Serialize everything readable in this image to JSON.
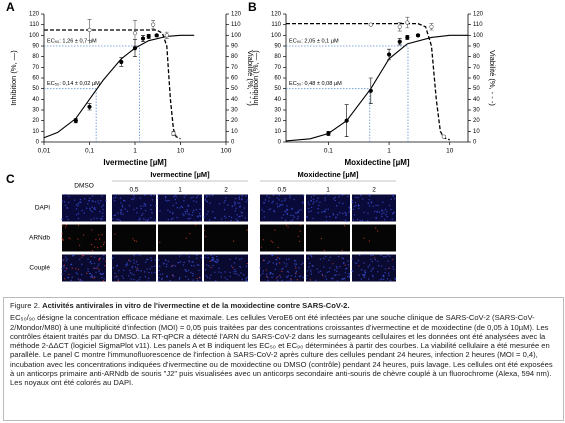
{
  "chart_data": [
    {
      "type": "dose-response",
      "panel": "A",
      "xlabel": "Ivermectine [µM]",
      "ylabel": "Inhibition (%, —)",
      "y2label": "Viabilité (%, - - -)",
      "log_x": true,
      "xlim": [
        0.01,
        100
      ],
      "xticks": [
        {
          "value": 0.01,
          "label": "0,01"
        },
        {
          "value": 0.1,
          "label": "0,1"
        },
        1,
        10,
        100
      ],
      "ylim": [
        0,
        120
      ],
      "yticks": [
        0,
        10,
        20,
        30,
        40,
        50,
        60,
        70,
        80,
        90,
        100,
        110,
        120
      ],
      "y2lim": [
        0,
        120
      ],
      "y2ticks": [
        0,
        10,
        20,
        30,
        40,
        50,
        60,
        70,
        80,
        90,
        100,
        110,
        120
      ],
      "series": [
        {
          "style": "fit",
          "color": "#000000",
          "x": [
            0.01,
            0.02,
            0.05,
            0.1,
            0.2,
            0.5,
            1,
            2,
            5,
            10,
            20
          ],
          "values": [
            4,
            9,
            22,
            40,
            58,
            78,
            88,
            95,
            99,
            100,
            100
          ]
        },
        {
          "style": "fit-dashed",
          "axis": "y2",
          "color": "#000000",
          "x": [
            0.01,
            0.1,
            1,
            3,
            4,
            5,
            6,
            7,
            8,
            10
          ],
          "values": [
            105,
            105,
            105,
            105,
            102,
            90,
            40,
            12,
            5,
            3
          ]
        },
        {
          "style": "points-filled",
          "color": "#000000",
          "x": [
            0.05,
            0.1,
            0.5,
            1,
            1.5,
            2,
            3
          ],
          "values": [
            20,
            33,
            75,
            88,
            97,
            99,
            100
          ],
          "errors": [
            2,
            3,
            4,
            8,
            3,
            2,
            1
          ]
        },
        {
          "style": "points-open",
          "axis": "y2",
          "color": "#555555",
          "x": [
            0.1,
            1,
            2.5,
            5,
            7
          ],
          "values": [
            105,
            102,
            110,
            100,
            8
          ],
          "errors": [
            10,
            12,
            4,
            3,
            2
          ]
        }
      ],
      "ec_markers": [
        {
          "x": 1.26,
          "y": 90,
          "label": "EC₉₀: 1,26 ± 0,7 µM"
        },
        {
          "x": 0.14,
          "y": 50,
          "label": "EC₅₀: 0,14 ± 0,02 µM"
        }
      ],
      "ec_color": "#5b8fd0"
    },
    {
      "type": "dose-response",
      "panel": "B",
      "xlabel": "Moxidectine [µM]",
      "ylabel": "Inhibition (%, —)",
      "y2label": "Viabilité (%, - - -)",
      "log_x": true,
      "xlim": [
        0.02,
        20
      ],
      "xticks": [
        0.1,
        1,
        10
      ],
      "ylim": [
        0,
        120
      ],
      "yticks": [
        0,
        10,
        20,
        30,
        40,
        50,
        60,
        70,
        80,
        90,
        100,
        110,
        120
      ],
      "y2lim": [
        0,
        120
      ],
      "y2ticks": [
        0,
        10,
        20,
        30,
        40,
        50,
        60,
        70,
        80,
        90,
        100,
        110,
        120
      ],
      "series": [
        {
          "style": "fit",
          "color": "#000000",
          "x": [
            0.02,
            0.05,
            0.1,
            0.2,
            0.5,
            1,
            2,
            5,
            10,
            20
          ],
          "values": [
            1,
            3,
            8,
            20,
            50,
            78,
            92,
            98,
            100,
            100
          ]
        },
        {
          "style": "fit-dashed",
          "axis": "y2",
          "color": "#000000",
          "x": [
            0.02,
            0.5,
            1,
            3,
            4,
            5,
            6,
            7,
            8,
            10
          ],
          "values": [
            111,
            111,
            111,
            111,
            108,
            90,
            40,
            10,
            4,
            2
          ]
        },
        {
          "style": "points-filled",
          "color": "#000000",
          "x": [
            0.1,
            0.2,
            0.5,
            1,
            1.5,
            2,
            3
          ],
          "values": [
            8,
            20,
            48,
            82,
            94,
            98,
            100
          ],
          "errors": [
            2,
            15,
            12,
            5,
            3,
            2,
            1
          ]
        },
        {
          "style": "points-open",
          "axis": "y2",
          "color": "#555555",
          "x": [
            0.5,
            1.5,
            2,
            5,
            8
          ],
          "values": [
            110,
            108,
            112,
            108,
            5
          ],
          "errors": [
            1,
            4,
            5,
            3,
            1
          ]
        }
      ],
      "ec_markers": [
        {
          "x": 2.05,
          "y": 90,
          "label": "EC₉₀: 2,05 ± 0,1 µM"
        },
        {
          "x": 0.48,
          "y": 50,
          "label": "EC₅₀: 0,48 ± 0,08 µM"
        }
      ],
      "ec_color": "#5b8fd0"
    }
  ],
  "panel_c": {
    "panel": "C",
    "control": "DMSO",
    "column_groups": [
      {
        "label": "Ivermectine [µM]",
        "columns": [
          "0,5",
          "1",
          "2"
        ]
      },
      {
        "label": "Moxidectine [µM]",
        "columns": [
          "0,5",
          "1",
          "2"
        ]
      }
    ],
    "rows": [
      "DAPI",
      "ARNdb",
      "Couplé"
    ]
  },
  "caption": {
    "label": "Figure 2.",
    "title": "Activités antivirales in vitro de l'ivermectine et de la moxidectine contre SARS-CoV-2.",
    "body": "EC₅₀/₉₀ désigne la concentration efficace médiane et maximale. Les cellules VeroE6 ont été infectées par une souche clinique de SARS-CoV-2 (SARS-CoV-2/Mondor/M80) à une multiplicité d'infection (MOI) = 0,05 puis traitées par des concentrations croissantes d'ivermectine et de moxidectine (de 0,05 à 10µM). Les contrôles étaient traités par du DMSO. La RT-qPCR a détecté l'ARN du SARS-CoV-2 dans les surnageants cellulaires et les données ont été analysées avec la méthode 2-ΔΔCT (logiciel SigmaPlot v11). Les panels A et B indiquent les EC₅₀ et EC₉₀ déterminées à partir des courbes. La viabilité cellulaire a été mesurée en parallèle. Le panel C montre l'immunofluorescence de l'infection à SARS-CoV-2 après culture des cellules pendant 24 heures, infection 2 heures (MOI = 0,4), incubation avec les concentrations indiquées d'ivermectine ou de moxidectine ou DMSO (contrôle) pendant 24 heures, puis lavage. Les cellules ont été exposées à un anticorps primaire anti-ARNdb de souris \"J2\" puis visualisées avec un anticorps secondaire anti-souris de chèvre couplé à un fluorochrome (Alexa, 594 nm). Les noyaux ont été colorés au DAPI."
  }
}
